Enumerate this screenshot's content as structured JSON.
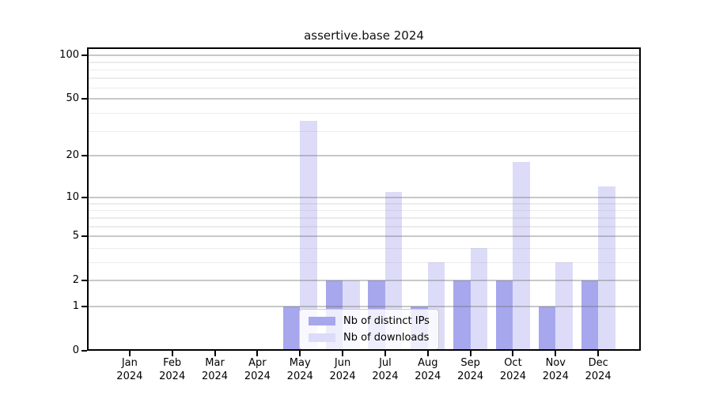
{
  "chart_data": {
    "type": "bar",
    "title": "assertive.base 2024",
    "categories": [
      {
        "month": "Jan",
        "year": "2024"
      },
      {
        "month": "Feb",
        "year": "2024"
      },
      {
        "month": "Mar",
        "year": "2024"
      },
      {
        "month": "Apr",
        "year": "2024"
      },
      {
        "month": "May",
        "year": "2024"
      },
      {
        "month": "Jun",
        "year": "2024"
      },
      {
        "month": "Jul",
        "year": "2024"
      },
      {
        "month": "Aug",
        "year": "2024"
      },
      {
        "month": "Sep",
        "year": "2024"
      },
      {
        "month": "Oct",
        "year": "2024"
      },
      {
        "month": "Nov",
        "year": "2024"
      },
      {
        "month": "Dec",
        "year": "2024"
      }
    ],
    "series": [
      {
        "name": "Nb of distinct IPs",
        "color": "#a7a7ee",
        "values": [
          0,
          0,
          0,
          0,
          1,
          2,
          2,
          1,
          2,
          2,
          1,
          2
        ]
      },
      {
        "name": "Nb of downloads",
        "color": "#dcdcf8",
        "values": [
          0,
          0,
          0,
          0,
          35,
          2,
          11,
          3,
          4,
          18,
          3,
          12
        ]
      }
    ],
    "y_axis": {
      "scale": "log1p",
      "ticks": [
        0,
        1,
        2,
        5,
        10,
        20,
        50,
        100
      ],
      "minor_gridlines": [
        3,
        4,
        6,
        7,
        8,
        9,
        30,
        40,
        60,
        70,
        80,
        90
      ],
      "range": [
        0,
        113
      ]
    },
    "legend_position": "lower center",
    "grid": true,
    "colors": {
      "plot_border": "#000000",
      "background": "#ffffff",
      "major_grid": "#c8c8c8",
      "minor_grid": "#ececec"
    }
  }
}
